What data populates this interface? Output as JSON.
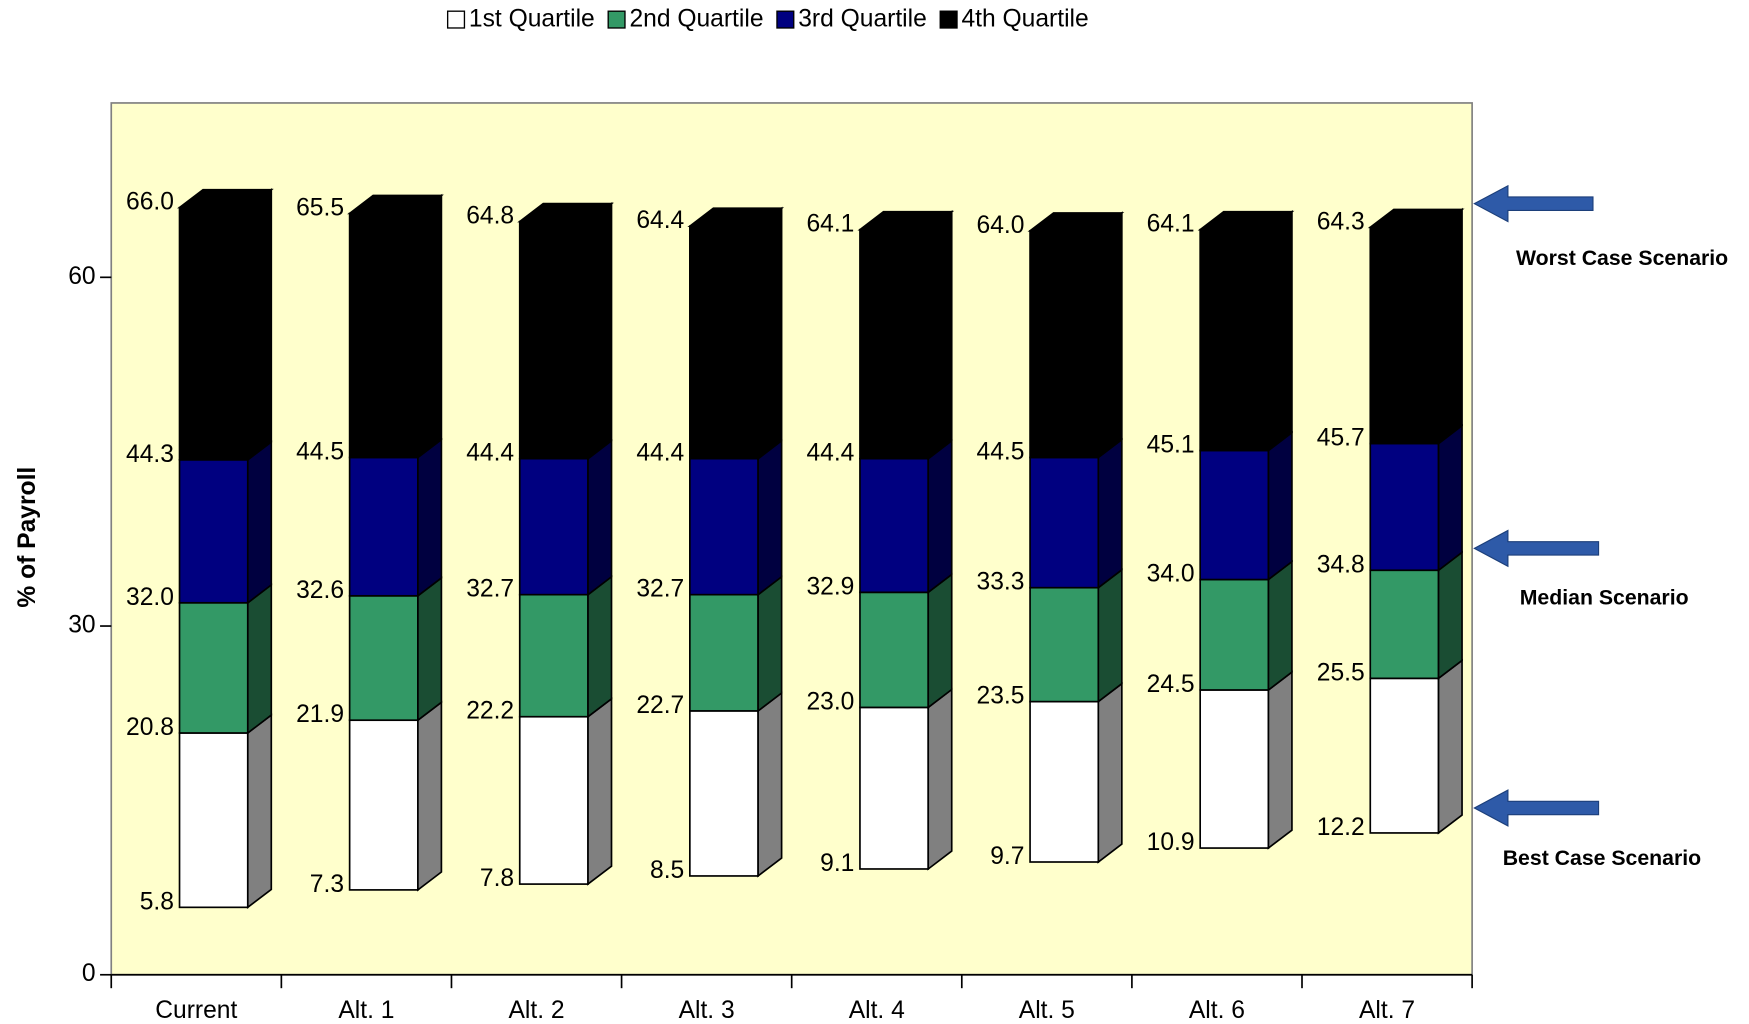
{
  "chart_data": {
    "type": "range-bar",
    "y_label": "% of Payroll",
    "categories": [
      "Current",
      "Alt. 1",
      "Alt. 2",
      "Alt. 3",
      "Alt. 4",
      "Alt. 5",
      "Alt. 6",
      "Alt. 7"
    ],
    "base": {
      "values": [
        5.8,
        7.3,
        7.8,
        8.5,
        9.1,
        9.7,
        10.9,
        12.2
      ],
      "value_labels": [
        "5.8",
        "7.3",
        "7.8",
        "8.5",
        "9.1",
        "9.7",
        "10.9",
        "12.2"
      ]
    },
    "series": [
      {
        "name": "1st Quartile",
        "color": "#ffffff",
        "side_color": "#808080",
        "values": [
          20.8,
          21.9,
          22.2,
          22.7,
          23.0,
          23.5,
          24.5,
          25.5
        ],
        "value_labels": [
          "20.8",
          "21.9",
          "22.2",
          "22.7",
          "23.0",
          "23.5",
          "24.5",
          "25.5"
        ]
      },
      {
        "name": "2nd Quartile",
        "color": "#339966",
        "side_color": "#1a4d33",
        "values": [
          32.0,
          32.6,
          32.7,
          32.7,
          32.9,
          33.3,
          34.0,
          34.8
        ],
        "value_labels": [
          "32.0",
          "32.6",
          "32.7",
          "32.7",
          "32.9",
          "33.3",
          "34.0",
          "34.8"
        ]
      },
      {
        "name": "3rd Quartile",
        "color": "#000080",
        "side_color": "#000040",
        "values": [
          44.3,
          44.5,
          44.4,
          44.4,
          44.4,
          44.5,
          45.1,
          45.7
        ],
        "value_labels": [
          "44.3",
          "44.5",
          "44.4",
          "44.4",
          "44.4",
          "44.5",
          "45.1",
          "45.7"
        ]
      },
      {
        "name": "4th Quartile",
        "color": "#000000",
        "side_color": "#000000",
        "values": [
          66.0,
          65.5,
          64.8,
          64.4,
          64.1,
          64.0,
          64.1,
          64.3
        ],
        "value_labels": [
          "66.0",
          "65.5",
          "64.8",
          "64.4",
          "64.1",
          "64.0",
          "64.1",
          "64.3"
        ]
      }
    ],
    "ylim": [
      0,
      75
    ],
    "yticks": [
      0,
      30,
      60
    ],
    "plot_background": "#ffffcc",
    "legend": "top",
    "annotations": [
      "Worst Case Scenario",
      "Median Scenario",
      "Best Case Scenario"
    ]
  }
}
